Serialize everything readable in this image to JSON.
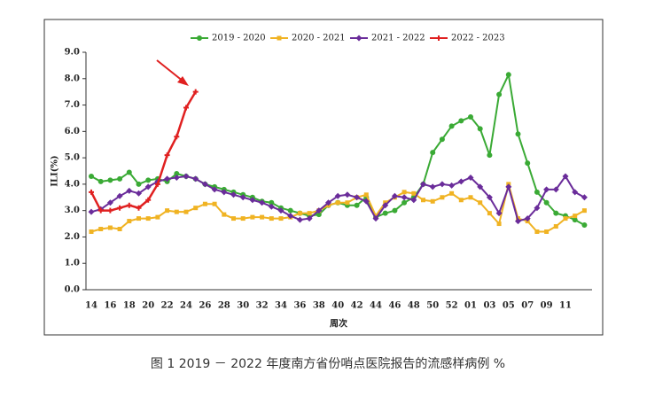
{
  "chart_data": {
    "type": "line",
    "caption": "图 1 2019 － 2022 年度南方省份哨点医院报告的流感样病例 %",
    "x_label": "周次",
    "y_label": "ILI(%)",
    "categories": [
      "14",
      null,
      "16",
      null,
      "18",
      null,
      "20",
      null,
      "22",
      null,
      "24",
      null,
      "26",
      null,
      "28",
      null,
      "30",
      null,
      "32",
      null,
      "34",
      null,
      "36",
      null,
      "38",
      null,
      "40",
      null,
      "42",
      null,
      "44",
      null,
      "46",
      null,
      "48",
      null,
      "50",
      null,
      "52",
      null,
      "01",
      null,
      "03",
      null,
      "05",
      null,
      "07",
      null,
      "09",
      null,
      "11",
      null,
      null
    ],
    "ylim": [
      0,
      9
    ],
    "yticks": [
      {
        "value": 0,
        "label": "0.0"
      },
      {
        "value": 1,
        "label": "1.0"
      },
      {
        "value": 2,
        "label": "2.0"
      },
      {
        "value": 3,
        "label": "3.0"
      },
      {
        "value": 4,
        "label": "4.0"
      },
      {
        "value": 5,
        "label": "5.0"
      },
      {
        "value": 6,
        "label": "6.0"
      },
      {
        "value": 7,
        "label": "7.0"
      },
      {
        "value": 8,
        "label": "8.0"
      },
      {
        "value": 9,
        "label": "9.0"
      }
    ],
    "series": [
      {
        "name": "2019 - 2020",
        "color": "#3aaa35",
        "marker": "circle",
        "values": [
          4.3,
          4.1,
          4.15,
          4.2,
          4.45,
          4.0,
          4.15,
          4.2,
          4.1,
          4.4,
          4.3,
          4.2,
          4.0,
          3.9,
          3.8,
          3.7,
          3.6,
          3.5,
          3.35,
          3.3,
          3.1,
          3.0,
          2.9,
          2.8,
          2.85,
          3.2,
          3.3,
          3.2,
          3.2,
          3.5,
          2.75,
          2.9,
          3.0,
          3.3,
          3.5,
          4.0,
          5.2,
          5.7,
          6.2,
          6.4,
          6.55,
          6.1,
          5.1,
          7.4,
          8.15,
          5.9,
          4.8,
          3.7,
          3.3,
          2.9,
          2.8,
          2.65,
          2.45
        ]
      },
      {
        "name": "2020 - 2021",
        "color": "#f0b323",
        "marker": "square",
        "values": [
          2.2,
          2.3,
          2.35,
          2.3,
          2.6,
          2.7,
          2.7,
          2.75,
          3.0,
          2.95,
          2.95,
          3.1,
          3.25,
          3.25,
          2.85,
          2.7,
          2.7,
          2.75,
          2.75,
          2.7,
          2.7,
          2.75,
          2.9,
          2.9,
          3.0,
          3.2,
          3.3,
          3.3,
          3.5,
          3.6,
          2.8,
          3.3,
          3.5,
          3.7,
          3.65,
          3.4,
          3.35,
          3.5,
          3.65,
          3.4,
          3.5,
          3.3,
          2.9,
          2.5,
          4.0,
          2.7,
          2.6,
          2.2,
          2.2,
          2.4,
          2.7,
          2.8,
          3.0
        ]
      },
      {
        "name": "2021 - 2022",
        "color": "#6a2c9a",
        "marker": "diamond",
        "values": [
          2.95,
          3.05,
          3.3,
          3.55,
          3.75,
          3.65,
          3.9,
          4.1,
          4.2,
          4.25,
          4.3,
          4.2,
          4.0,
          3.8,
          3.7,
          3.6,
          3.5,
          3.4,
          3.3,
          3.15,
          3.0,
          2.8,
          2.65,
          2.7,
          3.0,
          3.3,
          3.55,
          3.6,
          3.5,
          3.35,
          2.7,
          3.2,
          3.55,
          3.5,
          3.4,
          4.0,
          3.9,
          4.0,
          3.95,
          4.1,
          4.25,
          3.9,
          3.5,
          2.9,
          3.9,
          2.6,
          2.7,
          3.1,
          3.8,
          3.8,
          4.3,
          3.7,
          3.5
        ]
      },
      {
        "name": "2022 - 2023",
        "color": "#e02020",
        "marker": "plus",
        "values": [
          3.7,
          3.0,
          3.0,
          3.1,
          3.2,
          3.1,
          3.4,
          4.0,
          5.1,
          5.8,
          6.9,
          7.5,
          null,
          null,
          null,
          null,
          null,
          null,
          null,
          null,
          null,
          null,
          null,
          null,
          null,
          null,
          null,
          null,
          null,
          null,
          null,
          null,
          null,
          null,
          null,
          null,
          null,
          null,
          null,
          null,
          null,
          null,
          null,
          null,
          null,
          null,
          null,
          null,
          null,
          null,
          null,
          null,
          null
        ]
      }
    ]
  }
}
